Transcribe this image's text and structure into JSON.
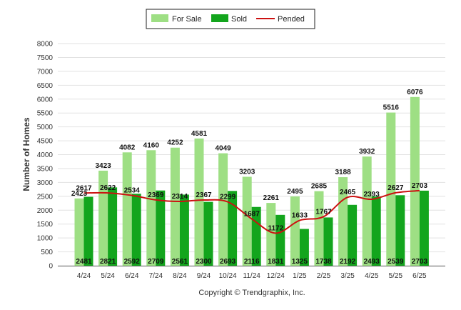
{
  "chart_data": {
    "type": "bar",
    "title": "",
    "xlabel": "",
    "ylabel": "Number of Homes",
    "ylim": [
      0,
      8000
    ],
    "yticks": [
      0,
      500,
      1000,
      1500,
      2000,
      2500,
      3000,
      3500,
      4000,
      4500,
      5000,
      5500,
      6000,
      6500,
      7000,
      7500,
      8000
    ],
    "grid": true,
    "legend_position": "top-center",
    "categories": [
      "4/24",
      "5/24",
      "6/24",
      "7/24",
      "8/24",
      "9/24",
      "10/24",
      "11/24",
      "12/24",
      "1/25",
      "2/25",
      "3/25",
      "4/25",
      "5/25",
      "6/25"
    ],
    "series": [
      {
        "name": "For Sale",
        "kind": "bar",
        "color": "#9edf84",
        "values": [
          2423,
          3423,
          4082,
          4160,
          4252,
          4581,
          4049,
          3203,
          2261,
          2495,
          2685,
          3188,
          3932,
          5516,
          6076
        ]
      },
      {
        "name": "Sold",
        "kind": "bar",
        "color": "#13a51d",
        "values": [
          2481,
          2821,
          2592,
          2709,
          2561,
          2300,
          2693,
          2116,
          1831,
          1325,
          1738,
          2192,
          2493,
          2539,
          2703
        ]
      },
      {
        "name": "Pended",
        "kind": "line",
        "color": "#cc1111",
        "values": [
          2617,
          2622,
          2534,
          2369,
          2314,
          2367,
          2299,
          1687,
          1172,
          1633,
          1767,
          2465,
          2393,
          2627,
          2703
        ]
      }
    ],
    "footer": "Copyright © Trendgraphix, Inc."
  }
}
